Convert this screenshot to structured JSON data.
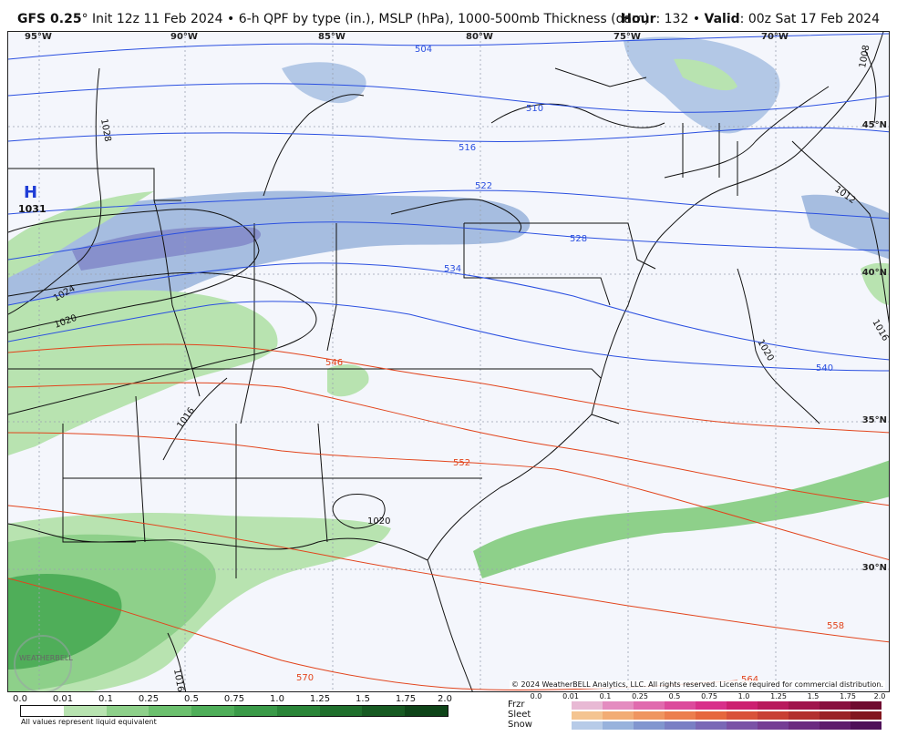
{
  "header": {
    "model": "GFS 0.25",
    "degree": "°",
    "init": " Init 12z 11 Feb 2024 • 6-h QPF by type (in.), MSLP (hPa), 1000-500mb Thickness (dam)",
    "hour_label": "Hour",
    "hour_value": ": 132 • ",
    "valid_label": "Valid",
    "valid_value": ": 00z Sat 17 Feb 2024"
  },
  "map": {
    "longitudes": [
      "95°W",
      "90°W",
      "85°W",
      "80°W",
      "75°W",
      "70°W"
    ],
    "latitudes": [
      "45°N",
      "40°N",
      "35°N",
      "30°N"
    ],
    "high_symbol": "H",
    "high_value": "1031",
    "isobars": [
      "1008",
      "1012",
      "1016",
      "1016",
      "1020",
      "1020",
      "1020",
      "1024",
      "1028",
      "1016"
    ],
    "thickness_blue": [
      "504",
      "510",
      "516",
      "522",
      "528",
      "534",
      "540"
    ],
    "thickness_red": [
      "546",
      "552",
      "558",
      "564",
      "570"
    ],
    "logo_text": "WEATHERBELL",
    "copyright": "© 2024 WeatherBELL Analytics, LLC. All rights reserved. License required for commercial distribution."
  },
  "legend": {
    "rain_ticks": [
      "0.0",
      "0.01",
      "0.1",
      "0.25",
      "0.5",
      "0.75",
      "1.0",
      "1.25",
      "1.5",
      "1.75",
      "2.0"
    ],
    "rain_colors": [
      "#ffffff",
      "#b8e3b0",
      "#8ed08a",
      "#6cc06e",
      "#4fae59",
      "#3a9a48",
      "#2a8538",
      "#1f6f2c",
      "#175a22",
      "#0e4418"
    ],
    "note": "All values represent liquid equivalent",
    "type_ticks": [
      "0.0",
      "0.01",
      "0.1",
      "0.25",
      "0.5",
      "0.75",
      "1.0",
      "1.25",
      "1.5",
      "1.75",
      "2.0"
    ],
    "frzr_label": "Frzr",
    "sleet_label": "Sleet",
    "snow_label": "Snow",
    "frzr_colors": [
      "#e8b9d4",
      "#e48cc0",
      "#e06aae",
      "#dc4a9c",
      "#d8308a",
      "#cc2070",
      "#b81a5c",
      "#a0144c",
      "#880f3e",
      "#6f0b30"
    ],
    "sleet_colors": [
      "#f4c490",
      "#f2ac74",
      "#ef9560",
      "#ec7e4e",
      "#e6673e",
      "#d9523a",
      "#c84034",
      "#b2302e",
      "#9a2226",
      "#82161e"
    ],
    "snow_colors": [
      "#b7cbe8",
      "#98b2dc",
      "#8196cf",
      "#7a7fc4",
      "#7a68b6",
      "#7a52a6",
      "#753d94",
      "#6b2b80",
      "#5e1c6c",
      "#4e1058"
    ]
  }
}
